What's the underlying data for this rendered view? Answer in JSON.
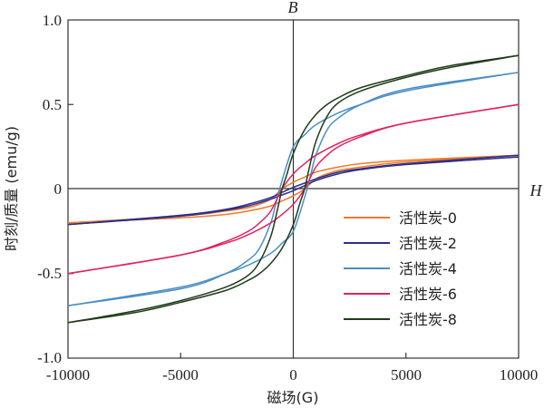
{
  "chart_data": {
    "type": "line",
    "xlabel": "磁场(G)",
    "ylabel": "时刻/质量 (emu/g)",
    "axis_annotations": {
      "vertical": "B",
      "horizontal": "H"
    },
    "xlim": [
      -10000,
      10000
    ],
    "ylim": [
      -1.0,
      1.0
    ],
    "xticks": [
      "-10000",
      "-5000",
      "0",
      "5000",
      "10000"
    ],
    "yticks": [
      "1.0",
      "0.5",
      "0",
      "-0.5",
      "-1.0"
    ],
    "grid": false,
    "legend_position": "lower-right",
    "series": [
      {
        "name": "活性炭-0",
        "color": "#f07a2a",
        "branch_descending": [
          [
            10000,
            0.2
          ],
          [
            5000,
            0.17
          ],
          [
            3000,
            0.15
          ],
          [
            2000,
            0.13
          ],
          [
            1000,
            0.1
          ],
          [
            500,
            0.07
          ],
          [
            0,
            0.04
          ],
          [
            -500,
            0.0
          ],
          [
            -1000,
            -0.06
          ],
          [
            -1500,
            -0.09
          ],
          [
            -2000,
            -0.11
          ],
          [
            -3000,
            -0.13
          ],
          [
            -5000,
            -0.16
          ],
          [
            -10000,
            -0.2
          ]
        ],
        "branch_ascending": [
          [
            -10000,
            -0.2
          ],
          [
            -5000,
            -0.17
          ],
          [
            -3000,
            -0.15
          ],
          [
            -2000,
            -0.13
          ],
          [
            -1000,
            -0.1
          ],
          [
            -500,
            -0.07
          ],
          [
            0,
            -0.04
          ],
          [
            500,
            0.0
          ],
          [
            1000,
            0.06
          ],
          [
            1500,
            0.09
          ],
          [
            2000,
            0.11
          ],
          [
            3000,
            0.13
          ],
          [
            5000,
            0.16
          ],
          [
            10000,
            0.2
          ]
        ]
      },
      {
        "name": "活性炭-2",
        "color": "#2b2f8a",
        "branch_descending": [
          [
            10000,
            0.2
          ],
          [
            5000,
            0.15
          ],
          [
            3000,
            0.12
          ],
          [
            2000,
            0.1
          ],
          [
            1000,
            0.06
          ],
          [
            500,
            0.035
          ],
          [
            0,
            0.01
          ],
          [
            -500,
            -0.02
          ],
          [
            -1000,
            -0.05
          ],
          [
            -2000,
            -0.09
          ],
          [
            -3000,
            -0.12
          ],
          [
            -5000,
            -0.155
          ],
          [
            -10000,
            -0.21
          ]
        ],
        "branch_ascending": [
          [
            -10000,
            -0.21
          ],
          [
            -5000,
            -0.16
          ],
          [
            -3000,
            -0.125
          ],
          [
            -2000,
            -0.1
          ],
          [
            -1000,
            -0.06
          ],
          [
            -500,
            -0.035
          ],
          [
            0,
            -0.01
          ],
          [
            500,
            0.02
          ],
          [
            1000,
            0.05
          ],
          [
            2000,
            0.09
          ],
          [
            3000,
            0.115
          ],
          [
            5000,
            0.145
          ],
          [
            10000,
            0.19
          ]
        ]
      },
      {
        "name": "活性炭-4",
        "color": "#4a8ec4",
        "branch_descending": [
          [
            10000,
            0.69
          ],
          [
            5000,
            0.58
          ],
          [
            3000,
            0.5
          ],
          [
            2000,
            0.45
          ],
          [
            1000,
            0.38
          ],
          [
            500,
            0.32
          ],
          [
            0,
            0.25
          ],
          [
            -500,
            0.05
          ],
          [
            -800,
            -0.1
          ],
          [
            -1000,
            -0.2
          ],
          [
            -1500,
            -0.35
          ],
          [
            -2000,
            -0.42
          ],
          [
            -3000,
            -0.5
          ],
          [
            -5000,
            -0.59
          ],
          [
            -10000,
            -0.69
          ]
        ],
        "branch_ascending": [
          [
            -10000,
            -0.69
          ],
          [
            -5000,
            -0.58
          ],
          [
            -3000,
            -0.5
          ],
          [
            -2000,
            -0.45
          ],
          [
            -1000,
            -0.38
          ],
          [
            -500,
            -0.32
          ],
          [
            0,
            -0.25
          ],
          [
            500,
            -0.05
          ],
          [
            800,
            0.1
          ],
          [
            1000,
            0.2
          ],
          [
            1500,
            0.35
          ],
          [
            2000,
            0.42
          ],
          [
            3000,
            0.5
          ],
          [
            5000,
            0.59
          ],
          [
            10000,
            0.69
          ]
        ]
      },
      {
        "name": "活性炭-6",
        "color": "#e0245e",
        "branch_descending": [
          [
            10000,
            0.5
          ],
          [
            5000,
            0.39
          ],
          [
            3000,
            0.32
          ],
          [
            2000,
            0.27
          ],
          [
            1000,
            0.2
          ],
          [
            500,
            0.15
          ],
          [
            0,
            0.09
          ],
          [
            -500,
            0.0
          ],
          [
            -1000,
            -0.13
          ],
          [
            -1500,
            -0.2
          ],
          [
            -2000,
            -0.25
          ],
          [
            -3000,
            -0.31
          ],
          [
            -5000,
            -0.39
          ],
          [
            -10000,
            -0.5
          ]
        ],
        "branch_ascending": [
          [
            -10000,
            -0.5
          ],
          [
            -5000,
            -0.39
          ],
          [
            -3000,
            -0.32
          ],
          [
            -2000,
            -0.27
          ],
          [
            -1000,
            -0.2
          ],
          [
            -500,
            -0.15
          ],
          [
            0,
            -0.09
          ],
          [
            500,
            0.0
          ],
          [
            1000,
            0.13
          ],
          [
            1500,
            0.2
          ],
          [
            2000,
            0.25
          ],
          [
            3000,
            0.31
          ],
          [
            5000,
            0.39
          ],
          [
            10000,
            0.5
          ]
        ]
      },
      {
        "name": "活性炭-8",
        "color": "#1f3b1a",
        "branch_descending": [
          [
            10000,
            0.79
          ],
          [
            7000,
            0.73
          ],
          [
            5000,
            0.67
          ],
          [
            3000,
            0.6
          ],
          [
            2000,
            0.54
          ],
          [
            1500,
            0.5
          ],
          [
            1000,
            0.44
          ],
          [
            500,
            0.35
          ],
          [
            0,
            0.21
          ],
          [
            -300,
            0.08
          ],
          [
            -500,
            0.0
          ],
          [
            -700,
            -0.12
          ],
          [
            -1000,
            -0.28
          ],
          [
            -1500,
            -0.43
          ],
          [
            -2000,
            -0.51
          ],
          [
            -3000,
            -0.58
          ],
          [
            -5000,
            -0.66
          ],
          [
            -7000,
            -0.72
          ],
          [
            -10000,
            -0.79
          ]
        ],
        "branch_ascending": [
          [
            -10000,
            -0.79
          ],
          [
            -7000,
            -0.73
          ],
          [
            -5000,
            -0.67
          ],
          [
            -3000,
            -0.6
          ],
          [
            -2000,
            -0.54
          ],
          [
            -1500,
            -0.5
          ],
          [
            -1000,
            -0.44
          ],
          [
            -500,
            -0.35
          ],
          [
            0,
            -0.21
          ],
          [
            300,
            -0.08
          ],
          [
            500,
            0.0
          ],
          [
            700,
            0.12
          ],
          [
            1000,
            0.28
          ],
          [
            1500,
            0.43
          ],
          [
            2000,
            0.51
          ],
          [
            3000,
            0.58
          ],
          [
            5000,
            0.66
          ],
          [
            7000,
            0.72
          ],
          [
            10000,
            0.79
          ]
        ]
      }
    ]
  }
}
